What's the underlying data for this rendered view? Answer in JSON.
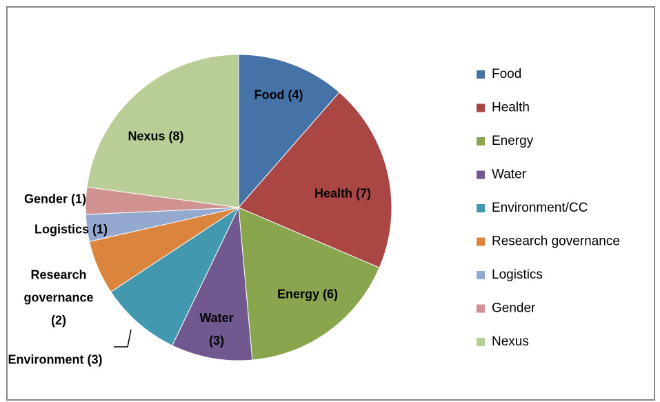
{
  "chart_data": {
    "type": "pie",
    "categories": [
      "Food",
      "Health",
      "Energy",
      "Water",
      "Environment/CC",
      "Research governance",
      "Logistics",
      "Gender",
      "Nexus"
    ],
    "values": [
      4,
      7,
      6,
      3,
      3,
      2,
      1,
      1,
      8
    ],
    "value_labels": [
      "Food (4)",
      "Health (7)",
      "Energy (6)",
      "Water (3)",
      "Environment (3)",
      "Research governance (2)",
      "Logistics (1)",
      "Gender (1)",
      "Nexus (8)"
    ],
    "colors": [
      "#4572a7",
      "#aa4643",
      "#89a54e",
      "#71588f",
      "#4198af",
      "#db843d",
      "#93a9cf",
      "#d19392",
      "#b9cd96"
    ],
    "legend": "right"
  }
}
